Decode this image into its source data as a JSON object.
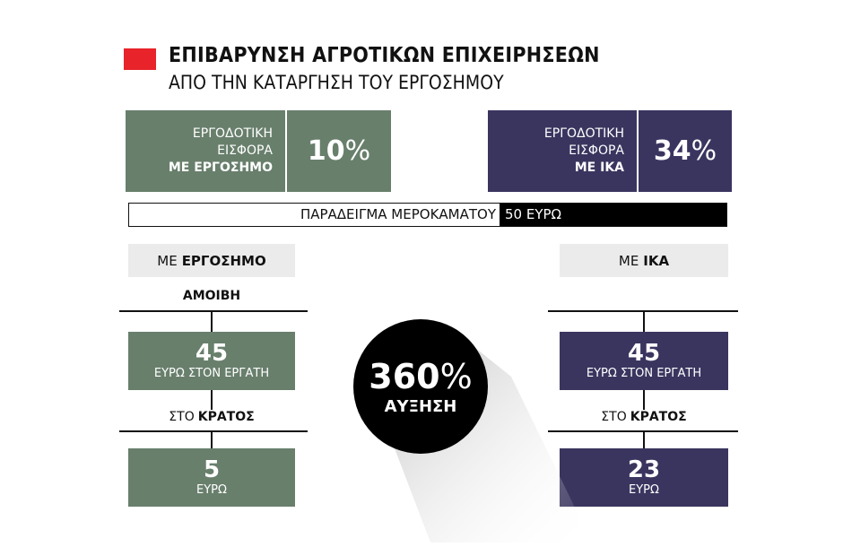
{
  "header": {
    "title": "ΕΠΙΒΑΡΥΝΣΗ ΑΓΡΟΤΙΚΩΝ ΕΠΙΧΕΙΡΗΣΕΩΝ",
    "subtitle": "ΑΠΟ ΤΗΝ ΚΑΤΑΡΓΗΣΗ ΤΟΥ ΕΡΓΟΣΗΜΟΥ",
    "accent_color": "#e8232a"
  },
  "contributions": {
    "ergosimo": {
      "line1": "ΕΡΓΟΔΟΤΙΚΗ",
      "line2": "ΕΙΣΦΟΡΑ",
      "line3": "ΜΕ ΕΡΓΟΣΗΜΟ",
      "value": "10",
      "unit": "%",
      "color": "#687f6c"
    },
    "ika": {
      "line1": "ΕΡΓΟΔΟΤΙΚΗ",
      "line2": "ΕΙΣΦΟΡΑ",
      "line3": "ΜΕ ΙΚΑ",
      "value": "34",
      "unit": "%",
      "color": "#3a355f"
    }
  },
  "wage_example": {
    "label": "ΠΑΡΑΔΕΙΓΜΑ ΜΕΡΟΚΑΜΑΤΟΥ",
    "value": "50 ΕΥΡΩ"
  },
  "left": {
    "tab_prefix": "ΜΕ",
    "tab_bold": "ΕΡΓΟΣΗΜΟ",
    "pay_label": "ΑΜΟΙΒΗ",
    "worker_value": "45",
    "worker_caption": "ΕΥΡΩ ΣΤΟΝ ΕΡΓΑΤΗ",
    "state_prefix": "ΣΤΟ",
    "state_bold": "ΚΡΑΤΟΣ",
    "state_value": "5",
    "state_caption": "ΕΥΡΩ"
  },
  "right": {
    "tab_prefix": "ΜΕ",
    "tab_bold": "ΙΚΑ",
    "worker_value": "45",
    "worker_caption": "ΕΥΡΩ ΣΤΟΝ ΕΡΓΑΤΗ",
    "state_prefix": "ΣΤΟ",
    "state_bold": "ΚΡΑΤΟΣ",
    "state_value": "23",
    "state_caption": "ΕΥΡΩ"
  },
  "increase": {
    "value": "360",
    "unit": "%",
    "label": "ΑΥΞΗΣΗ"
  }
}
